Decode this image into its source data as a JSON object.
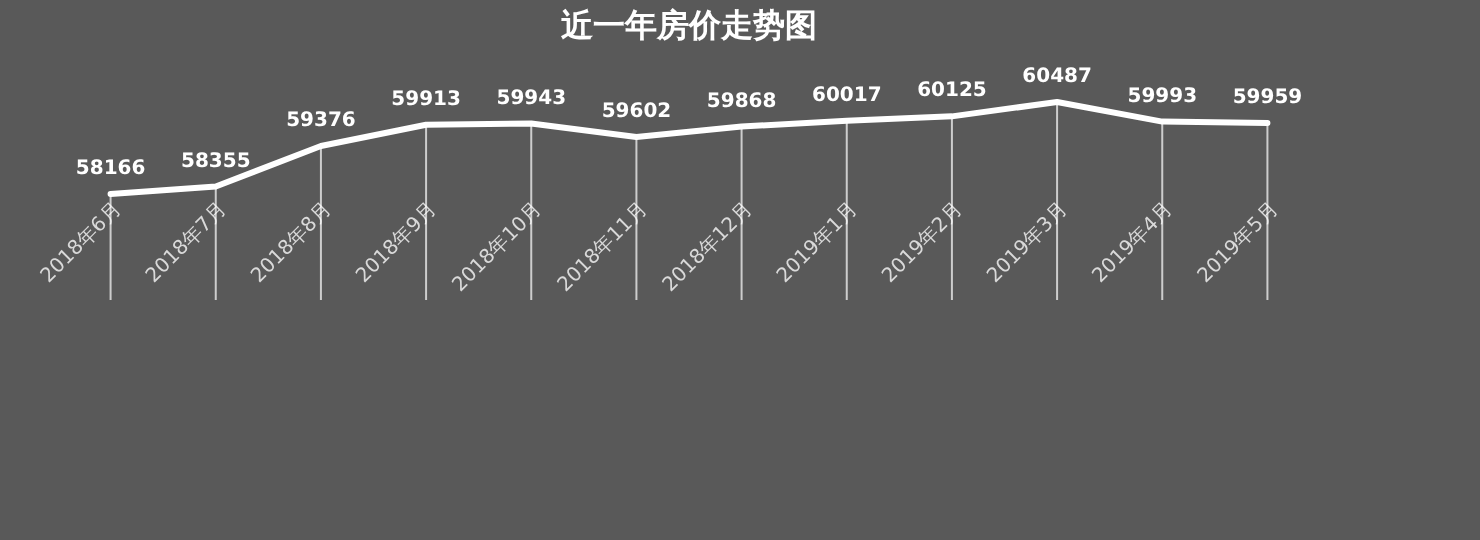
{
  "chart_data": {
    "type": "line",
    "title": "近一年房价走势图",
    "categories": [
      "2018年6月",
      "2018年7月",
      "2018年8月",
      "2018年9月",
      "2018年10月",
      "2018年11月",
      "2018年12月",
      "2019年1月",
      "2019年2月",
      "2019年3月",
      "2019年4月",
      "2019年5月"
    ],
    "series": [
      {
        "color": "#ffffff",
        "values": [
          58166,
          58355,
          59376,
          59913,
          59943,
          59602,
          59868,
          60017,
          60125,
          60487,
          59993,
          59959
        ]
      }
    ],
    "data_labels": true,
    "tick_labels": "x",
    "grid": "x"
  }
}
